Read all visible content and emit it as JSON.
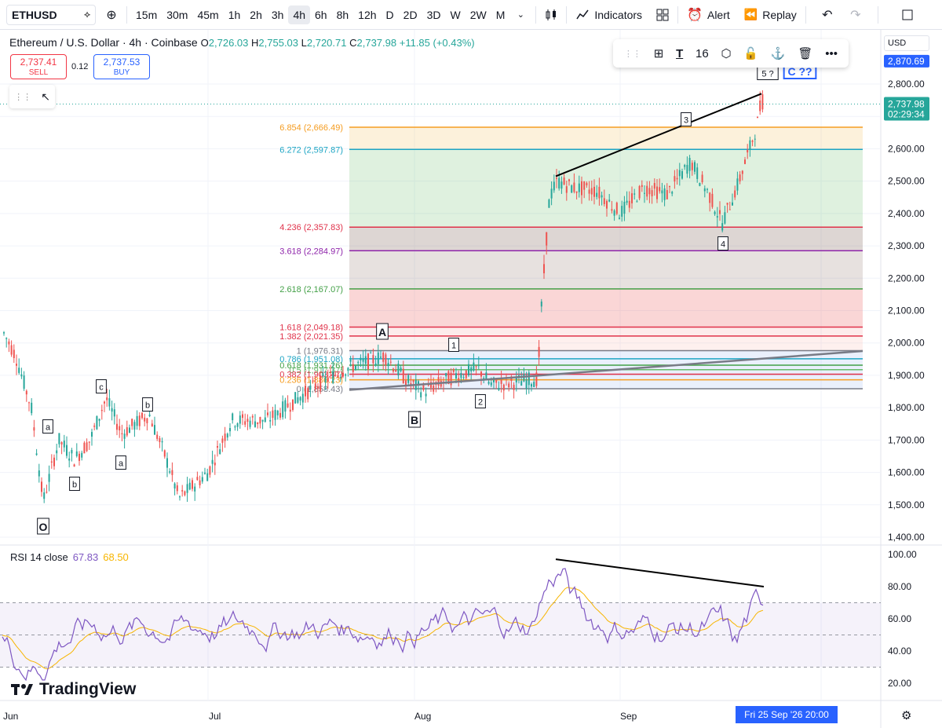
{
  "toolbar": {
    "symbol": "ETHUSD",
    "timeframes": [
      "15m",
      "30m",
      "45m",
      "1h",
      "2h",
      "3h",
      "4h",
      "6h",
      "8h",
      "12h",
      "D",
      "2D",
      "3D",
      "W",
      "2W",
      "M"
    ],
    "active_timeframe": "4h",
    "indicators_label": "Indicators",
    "alert_label": "Alert",
    "replay_label": "Replay"
  },
  "legend": {
    "title": "Ethereum / U.S. Dollar · 4h · Coinbase",
    "o_label": "O",
    "o": "2,726.03",
    "h_label": "H",
    "h": "2,755.03",
    "l_label": "L",
    "l": "2,720.71",
    "c_label": "C",
    "c": "2,737.98",
    "change": "+11.85 (+0.43%)"
  },
  "trade": {
    "sell_price": "2,737.41",
    "sell_label": "SELL",
    "spread": "0.12",
    "buy_price": "2,737.53",
    "buy_label": "BUY"
  },
  "drawing_toolbar": {
    "font_size": "16"
  },
  "rsi": {
    "label": "RSI 14 close",
    "value": "67.83",
    "ma_value": "68.50"
  },
  "price_axis": {
    "currency": "USD",
    "labels": [
      "2,800.00",
      "2,700.00",
      "2,600.00",
      "2,500.00",
      "2,400.00",
      "2,300.00",
      "2,200.00",
      "2,100.00",
      "2,000.00",
      "1,900.00",
      "1,800.00",
      "1,700.00",
      "1,600.00",
      "1,500.00",
      "1,400.00"
    ],
    "top_tag": "2,870.69",
    "current_tag": "2,737.98",
    "countdown": "02:29:34"
  },
  "rsi_axis": {
    "labels": [
      "100.00",
      "80.00",
      "60.00",
      "40.00",
      "20.00"
    ]
  },
  "time_axis": {
    "labels": [
      "Jun",
      "Jul",
      "Aug",
      "Sep"
    ],
    "crosshair_date": "Fri 25 Sep '26  20:00"
  },
  "fib_levels": [
    {
      "ratio": "6.854",
      "price": "2,666.49",
      "value": 2666.49,
      "color": "#f59d22"
    },
    {
      "ratio": "6.272",
      "price": "2,597.87",
      "value": 2597.87,
      "color": "#1da5c4"
    },
    {
      "ratio": "4.236",
      "price": "2,357.83",
      "value": 2357.83,
      "color": "#e0324a"
    },
    {
      "ratio": "3.618",
      "price": "2,284.97",
      "value": 2284.97,
      "color": "#8e24aa"
    },
    {
      "ratio": "2.618",
      "price": "2,167.07",
      "value": 2167.07,
      "color": "#43a047"
    },
    {
      "ratio": "1.618",
      "price": "2,049.18",
      "value": 2049.18,
      "color": "#e0324a"
    },
    {
      "ratio": "1.382",
      "price": "2,021.35",
      "value": 2021.35,
      "color": "#e0324a"
    },
    {
      "ratio": "1",
      "price": "1,976.31",
      "value": 1976.31,
      "color": "#787b86"
    },
    {
      "ratio": "0.786",
      "price": "1,951.08",
      "value": 1951.08,
      "color": "#1da5c4"
    },
    {
      "ratio": "0.618",
      "price": "1,931.26",
      "value": 1931.26,
      "color": "#43a047"
    },
    {
      "ratio": "0.5",
      "price": "1,917.37",
      "value": 1917.37,
      "color": "#66bb6a"
    },
    {
      "ratio": "0.382",
      "price": "1,903.47",
      "value": 1903.47,
      "color": "#e0324a"
    },
    {
      "ratio": "0.236",
      "price": "1,886.23",
      "value": 1886.23,
      "color": "#f59d22"
    },
    {
      "ratio": "0",
      "price": "1,858.43",
      "value": 1858.43,
      "color": "#787b86"
    }
  ],
  "wave_labels": [
    "O",
    "a",
    "b",
    "c",
    "a",
    "b",
    "A",
    "B",
    "1",
    "2",
    "3",
    "4",
    "5 ?",
    "C ??"
  ],
  "brand": "TradingView"
}
